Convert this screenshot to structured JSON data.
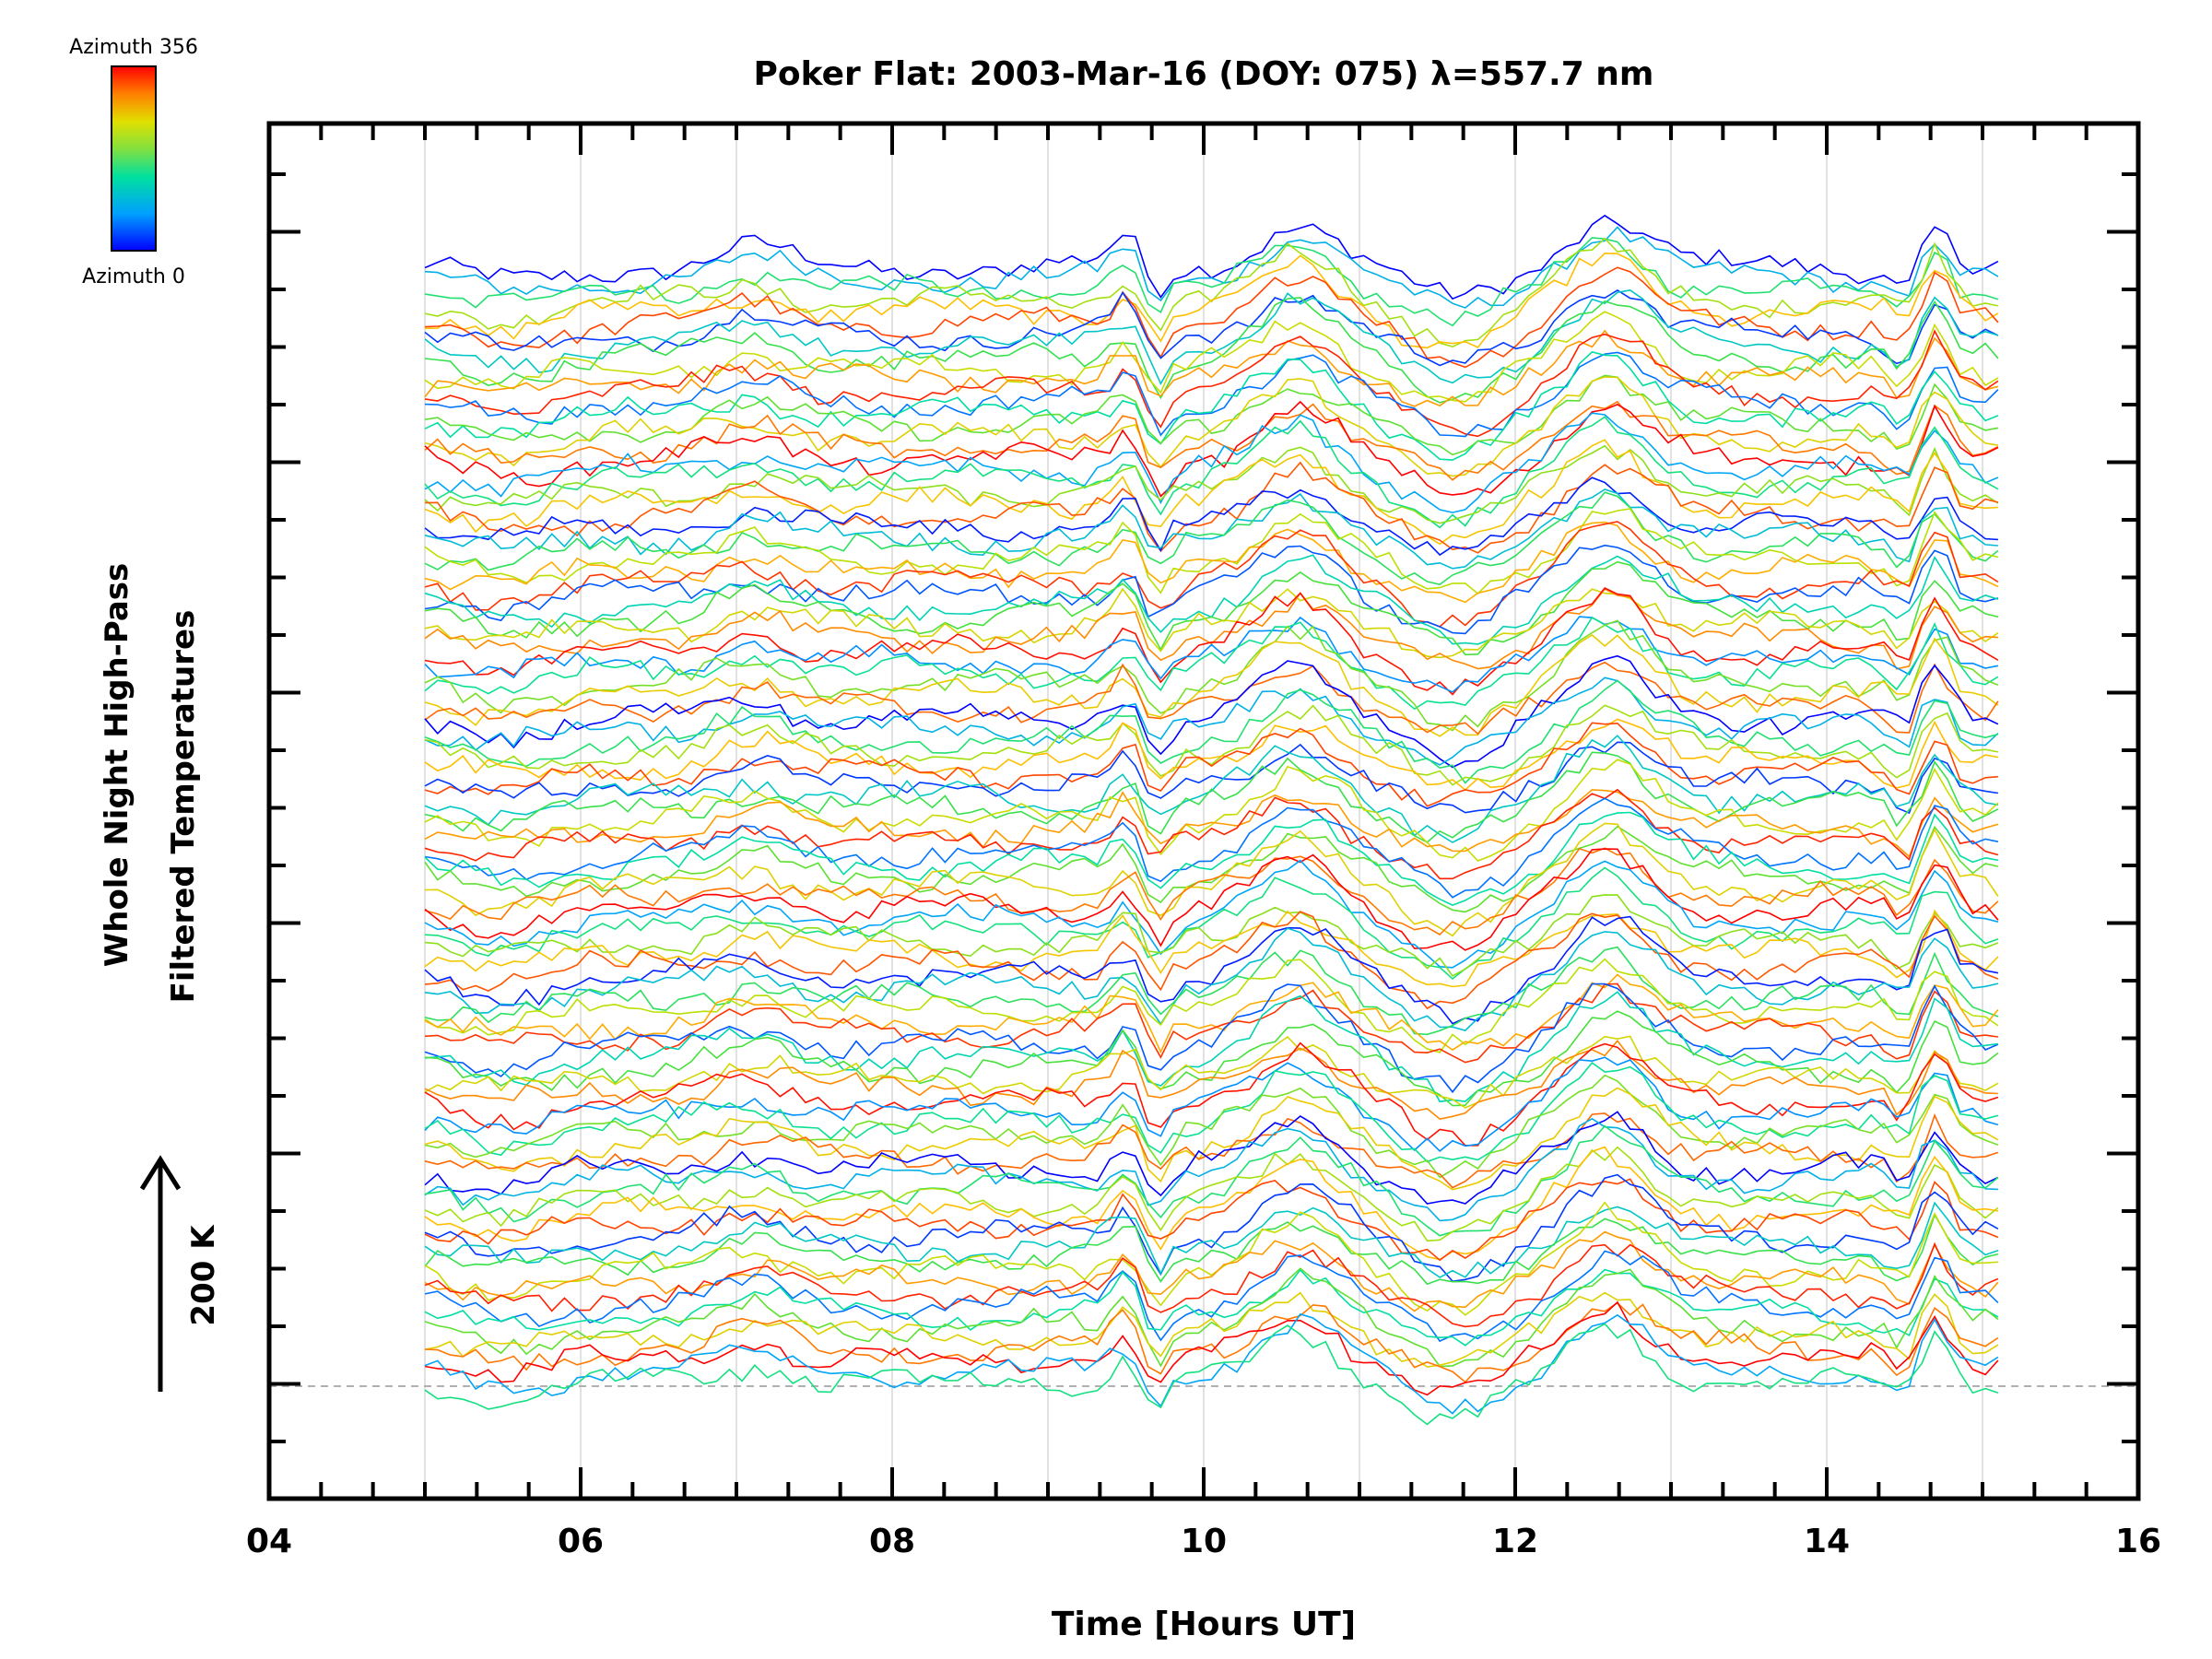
{
  "chart_data": {
    "type": "line",
    "title": "Poker Flat: 2003-Mar-16 (DOY: 075) λ=557.7 nm",
    "xlabel": "Time [Hours UT]",
    "ylabel_line1": "Whole Night High-Pass",
    "ylabel_line2": "Filtered Temperatures",
    "xlim": [
      4,
      16
    ],
    "x_ticks": [
      4,
      6,
      8,
      10,
      12,
      14,
      16
    ],
    "x_tick_labels": [
      "04",
      "06",
      "08",
      "10",
      "12",
      "14",
      "16"
    ],
    "x_grid": true,
    "y_grid": false,
    "time_start": 5.0,
    "time_end": 15.1,
    "n_samples": 125,
    "scale_bar": {
      "label": "200 K",
      "value_kelvin": 200
    },
    "colorbar": {
      "top_label": "Azimuth 356",
      "bottom_label": "Azimuth 0",
      "colormap": [
        "#0000ff",
        "#00a0ff",
        "#00e0a0",
        "#40e040",
        "#c0e000",
        "#ffc000",
        "#ff6000",
        "#ff0000"
      ]
    },
    "n_series": 100,
    "series_note": "100 stacked azimuth traces, azimuth 0 to 356 in color order, vertically offset"
  }
}
